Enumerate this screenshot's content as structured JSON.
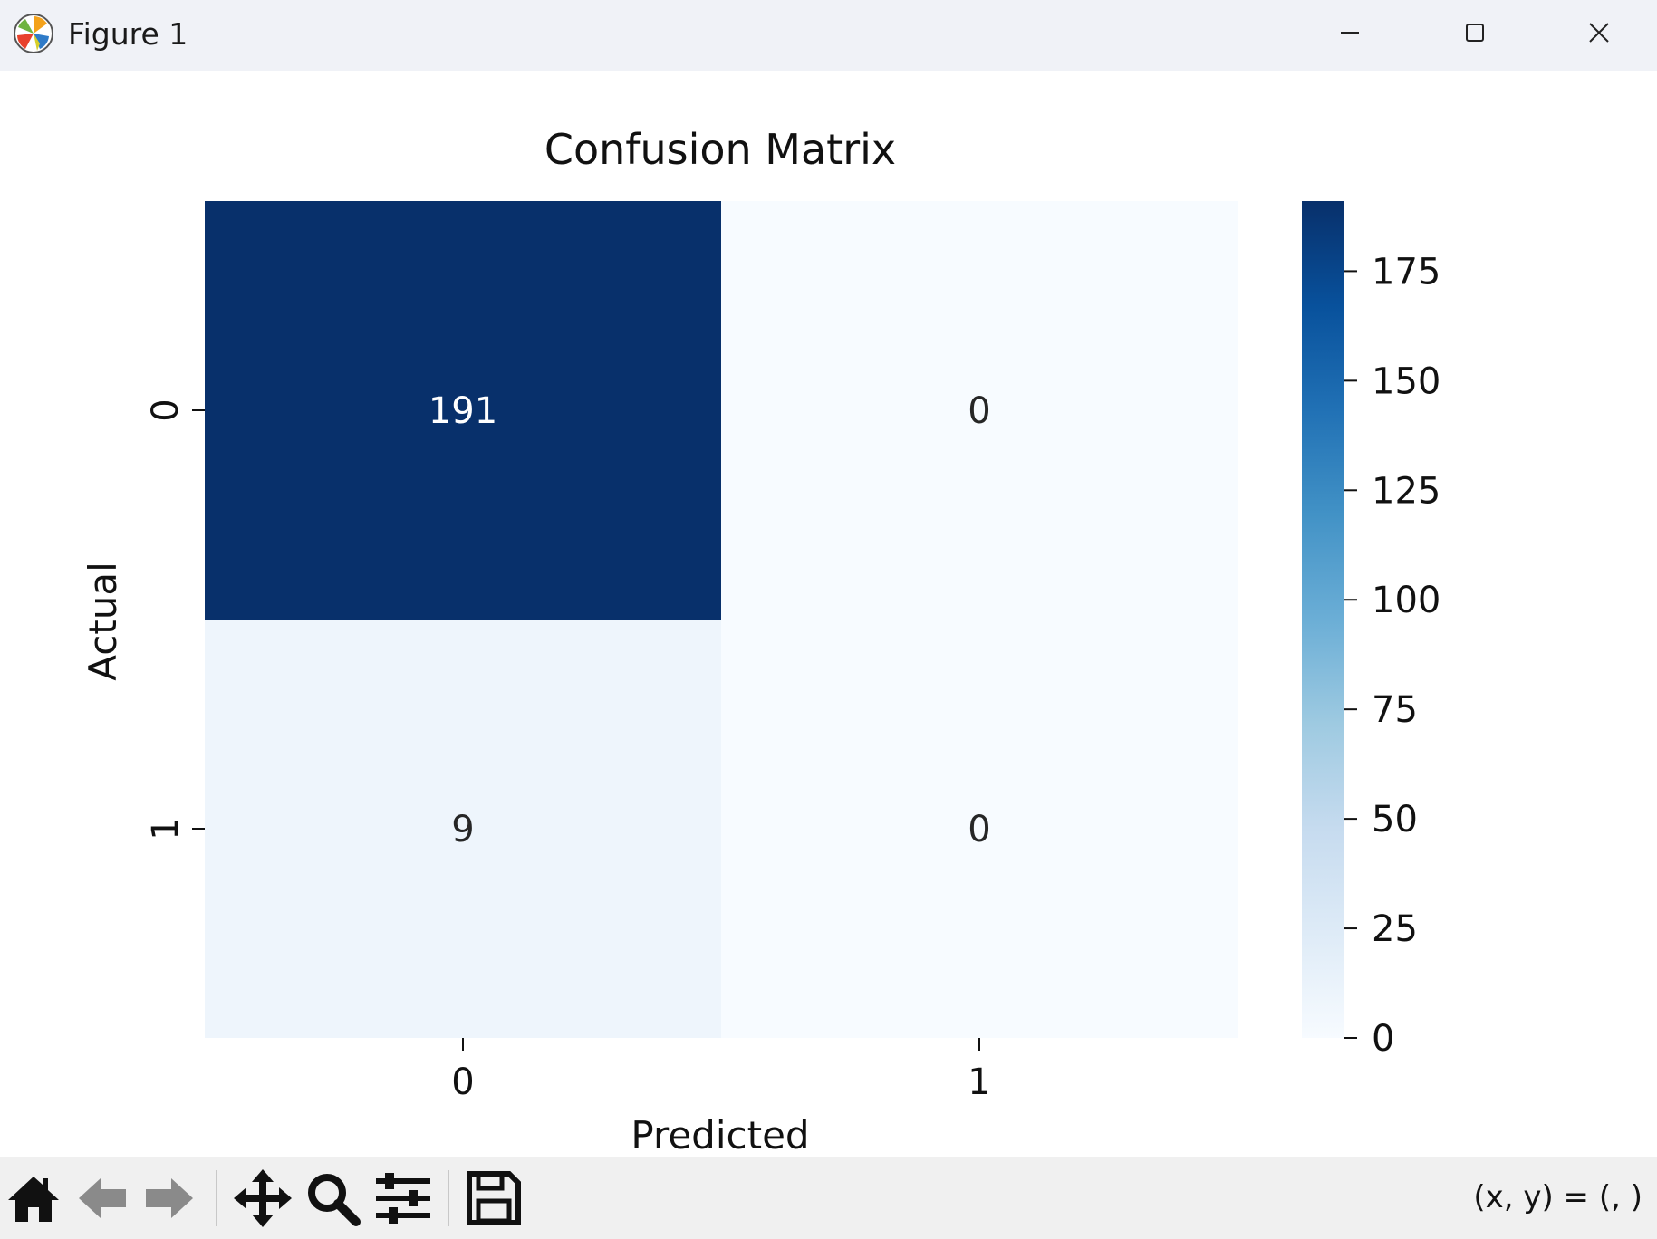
{
  "window": {
    "title": "Figure 1"
  },
  "icons": {
    "app": "matplotlib-icon",
    "minimize": "minimize-icon",
    "maximize": "maximize-icon",
    "close": "close-icon",
    "home": "home-icon",
    "back": "arrow-left-icon",
    "forward": "arrow-right-icon",
    "pan": "move-icon",
    "zoom": "search-icon",
    "configure": "sliders-icon",
    "save": "save-icon"
  },
  "toolbar": {
    "coordinates": "(x, y) = (, )"
  },
  "chart_data": {
    "type": "heatmap",
    "title": "Confusion Matrix",
    "xlabel": "Predicted",
    "ylabel": "Actual",
    "x_categories": [
      "0",
      "1"
    ],
    "y_categories": [
      "0",
      "1"
    ],
    "values": [
      [
        191,
        0
      ],
      [
        9,
        0
      ]
    ],
    "annotations": [
      [
        "191",
        "0"
      ],
      [
        "9",
        "0"
      ]
    ],
    "colormap": "Blues",
    "colorbar": {
      "min": 0,
      "max": 191,
      "ticks": [
        0,
        25,
        50,
        75,
        100,
        125,
        150,
        175
      ]
    },
    "grid": false
  }
}
